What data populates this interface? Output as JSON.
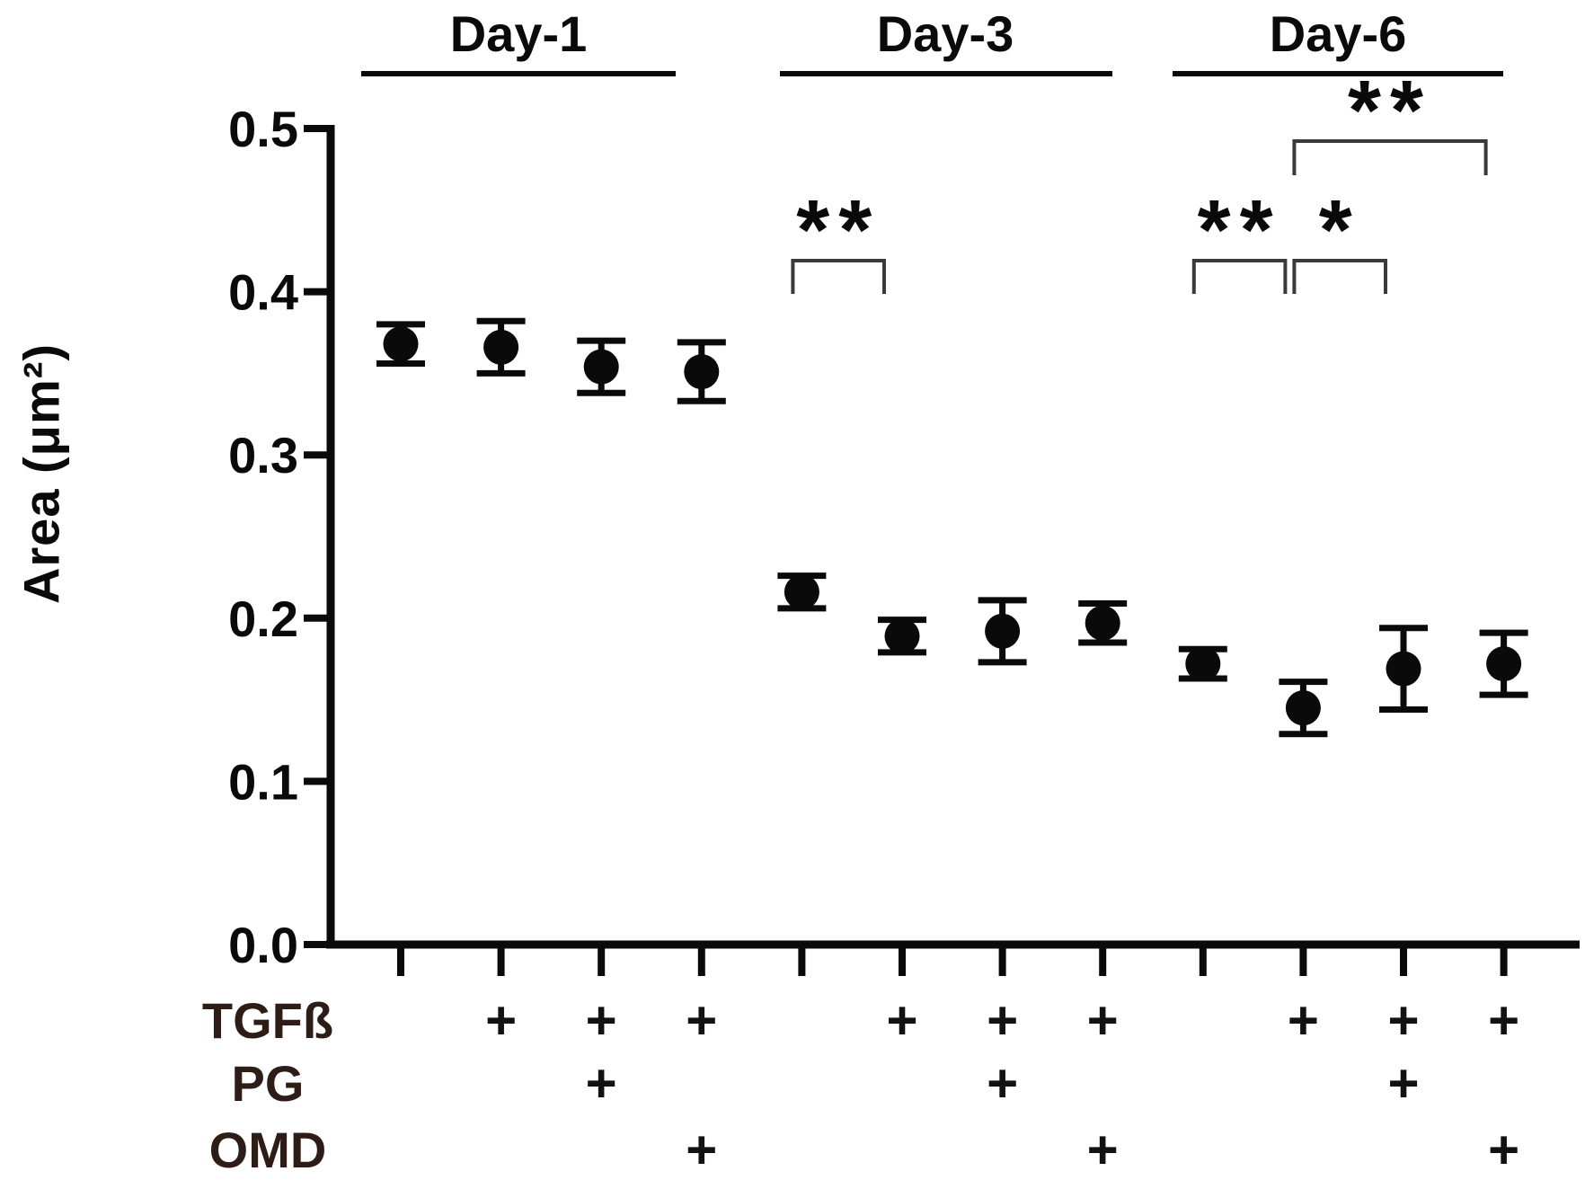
{
  "figure": {
    "background": "#ffffff"
  },
  "chart_data": {
    "type": "scatter",
    "title": "",
    "ylabel": "Area (μm²)",
    "xlabel": "",
    "ylim": [
      0.0,
      0.5
    ],
    "grid": false,
    "legend": null,
    "yticks": [
      0.0,
      0.1,
      0.2,
      0.3,
      0.4,
      0.5
    ],
    "ytick_labels": [
      "0.0",
      "0.1",
      "0.2",
      "0.3",
      "0.4",
      "0.5"
    ],
    "groups": [
      {
        "label": "Day-1",
        "columns": [
          0,
          1,
          2,
          3
        ]
      },
      {
        "label": "Day-3",
        "columns": [
          4,
          5,
          6,
          7
        ]
      },
      {
        "label": "Day-6",
        "columns": [
          8,
          9,
          10,
          11
        ]
      }
    ],
    "points": [
      {
        "col": 0,
        "group": "Day-1",
        "tgfb": false,
        "pg": false,
        "omd": false,
        "value": 0.368,
        "error": 0.012
      },
      {
        "col": 1,
        "group": "Day-1",
        "tgfb": true,
        "pg": false,
        "omd": false,
        "value": 0.366,
        "error": 0.016
      },
      {
        "col": 2,
        "group": "Day-1",
        "tgfb": true,
        "pg": true,
        "omd": false,
        "value": 0.354,
        "error": 0.016
      },
      {
        "col": 3,
        "group": "Day-1",
        "tgfb": true,
        "pg": false,
        "omd": true,
        "value": 0.351,
        "error": 0.018
      },
      {
        "col": 4,
        "group": "Day-3",
        "tgfb": false,
        "pg": false,
        "omd": false,
        "value": 0.216,
        "error": 0.01
      },
      {
        "col": 5,
        "group": "Day-3",
        "tgfb": true,
        "pg": false,
        "omd": false,
        "value": 0.189,
        "error": 0.01
      },
      {
        "col": 6,
        "group": "Day-3",
        "tgfb": true,
        "pg": true,
        "omd": false,
        "value": 0.192,
        "error": 0.019
      },
      {
        "col": 7,
        "group": "Day-3",
        "tgfb": true,
        "pg": false,
        "omd": true,
        "value": 0.197,
        "error": 0.012
      },
      {
        "col": 8,
        "group": "Day-6",
        "tgfb": false,
        "pg": false,
        "omd": false,
        "value": 0.172,
        "error": 0.009
      },
      {
        "col": 9,
        "group": "Day-6",
        "tgfb": true,
        "pg": false,
        "omd": false,
        "value": 0.145,
        "error": 0.016
      },
      {
        "col": 10,
        "group": "Day-6",
        "tgfb": true,
        "pg": true,
        "omd": false,
        "value": 0.169,
        "error": 0.025
      },
      {
        "col": 11,
        "group": "Day-6",
        "tgfb": true,
        "pg": false,
        "omd": true,
        "value": 0.172,
        "error": 0.019
      }
    ],
    "condition_rows": [
      {
        "label": "TGFß",
        "plus_columns": [
          1,
          2,
          3,
          5,
          6,
          7,
          9,
          10,
          11
        ]
      },
      {
        "label": "PG",
        "plus_columns": [
          2,
          6,
          10
        ]
      },
      {
        "label": "OMD",
        "plus_columns": [
          3,
          7,
          11
        ]
      }
    ],
    "plus_symbol": "+",
    "significance": [
      {
        "label": "**",
        "from_col": 4,
        "to_col": 5,
        "tier": "low"
      },
      {
        "label": "**",
        "from_col": 8,
        "to_col": 9,
        "tier": "low"
      },
      {
        "label": "*",
        "from_col": 9,
        "to_col": 10,
        "tier": "low"
      },
      {
        "label": "**",
        "from_col": 9,
        "to_col": 11,
        "tier": "high"
      }
    ],
    "colors": {
      "ink": "#0a0a0a",
      "bracket": "#3a3a3a",
      "row_label_ink": "#2e1d16",
      "plus_ink": "#121212"
    }
  }
}
